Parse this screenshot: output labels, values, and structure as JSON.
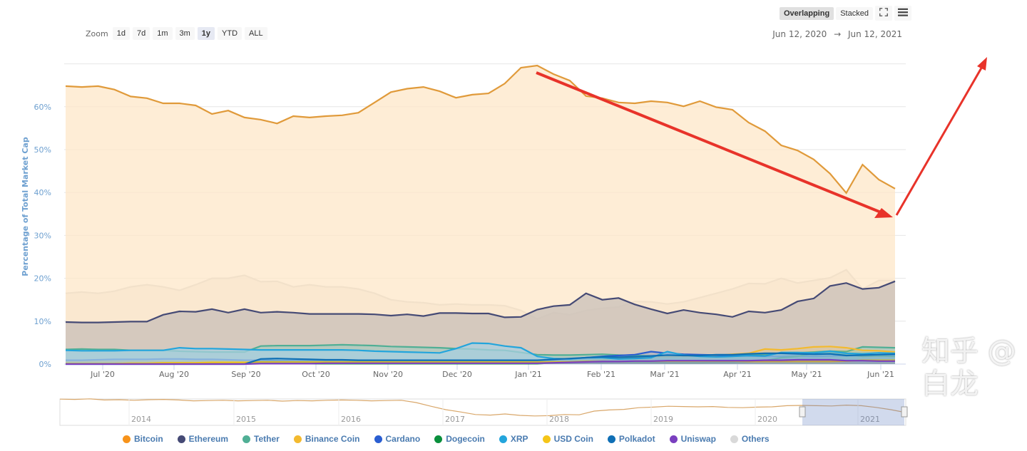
{
  "toolbar": {
    "zoom_label": "Zoom",
    "zoom_buttons": [
      "1d",
      "7d",
      "1m",
      "3m",
      "1y",
      "YTD",
      "ALL"
    ],
    "selected_zoom": "1y",
    "mode_buttons": [
      "Overlapping",
      "Stacked"
    ],
    "selected_mode": "Overlapping",
    "fullscreen_icon": "fullscreen-icon",
    "menu_icon": "hamburger-menu-icon",
    "range_from": "Jun 12, 2020",
    "range_arrow": "→",
    "range_to": "Jun 12, 2021"
  },
  "watermark": "知乎 @白龙",
  "chart_data": {
    "type": "area",
    "title": "",
    "xlabel": "",
    "ylabel": "Percentage of Total Market Cap",
    "ylim": [
      0,
      70
    ],
    "yticks": [
      "0%",
      "10%",
      "20%",
      "30%",
      "40%",
      "50%",
      "60%"
    ],
    "x_start": "2020-06-12",
    "x_end": "2021-06-12",
    "x_step": "weekly",
    "xticks": [
      "Jul '20",
      "Aug '20",
      "Sep '20",
      "Oct '20",
      "Nov '20",
      "Dec '20",
      "Jan '21",
      "Feb '21",
      "Mar '21",
      "Apr '21",
      "May '21",
      "Jun '21"
    ],
    "grid": true,
    "legend_position": "bottom",
    "series": [
      {
        "name": "Others",
        "color": "#d9d9d9",
        "values": [
          16.5,
          16.8,
          16.5,
          17,
          18,
          18.5,
          18,
          17.2,
          18.5,
          20,
          20,
          20.7,
          19.2,
          19.3,
          18,
          18.5,
          18,
          18,
          17.5,
          16.5,
          15,
          14.5,
          14.3,
          13.8,
          14,
          13.8,
          13.8,
          13.6,
          12.5,
          10.5,
          12,
          11.5,
          12.5,
          13,
          13.3,
          14.6,
          14.5,
          14,
          14.5,
          15.5,
          16.5,
          17.5,
          18.8,
          18.7,
          20,
          18.9,
          19.5,
          20.1,
          22,
          17.5,
          19.5,
          19.5
        ]
      },
      {
        "name": "Bitcoin",
        "color": "#f7931a",
        "values": [
          64.8,
          64.6,
          64.8,
          64.0,
          62.4,
          62.0,
          60.8,
          60.8,
          60.3,
          58.3,
          59.1,
          57.5,
          57.0,
          56.1,
          57.8,
          57.5,
          57.8,
          58.0,
          58.6,
          61.0,
          63.4,
          64.2,
          64.6,
          63.6,
          62.1,
          62.8,
          63.1,
          65.4,
          69.1,
          69.6,
          67.6,
          66.1,
          62.5,
          62.0,
          61.0,
          60.8,
          61.3,
          61.0,
          60.1,
          61.3,
          59.9,
          59.3,
          56.3,
          54.3,
          51.0,
          49.8,
          47.7,
          44.4,
          39.9,
          46.5,
          43.0,
          40.9
        ]
      },
      {
        "name": "Ethereum",
        "color": "#454a75",
        "values": [
          9.8,
          9.7,
          9.7,
          9.8,
          9.9,
          9.9,
          11.5,
          12.3,
          12.2,
          12.8,
          12,
          12.8,
          12,
          12.2,
          12,
          11.7,
          11.7,
          11.7,
          11.7,
          11.6,
          11.3,
          11.6,
          11.2,
          11.9,
          11.9,
          11.8,
          11.8,
          10.9,
          11,
          12.7,
          13.5,
          13.8,
          16.5,
          15,
          15.4,
          13.9,
          12.8,
          11.8,
          12.6,
          12,
          11.6,
          11,
          12.3,
          12,
          12.6,
          14.6,
          15.3,
          18.2,
          18.9,
          17.5,
          17.8,
          19.3
        ]
      },
      {
        "name": "Tether",
        "color": "#50af95",
        "values": [
          3.4,
          3.5,
          3.4,
          3.4,
          3.2,
          3.2,
          3.2,
          3,
          2.9,
          2.8,
          2.8,
          2.8,
          4.2,
          4.3,
          4.3,
          4.3,
          4.4,
          4.5,
          4.4,
          4.3,
          4.1,
          4,
          3.9,
          3.8,
          3.6,
          3.5,
          3.3,
          3.2,
          2.7,
          2.2,
          2.1,
          2.1,
          2.2,
          2.3,
          2.1,
          2,
          1.9,
          1.8,
          1.9,
          1.9,
          2,
          2,
          2.1,
          2.3,
          2.5,
          2.6,
          2.8,
          3,
          2.9,
          4,
          3.9,
          3.8
        ]
      },
      {
        "name": "Binance Coin",
        "color": "#f3ba2f",
        "values": [
          0.6,
          0.6,
          0.6,
          0.6,
          0.6,
          0.6,
          0.6,
          0.6,
          0.7,
          0.7,
          0.7,
          0.8,
          0.8,
          0.8,
          0.7,
          0.7,
          0.7,
          0.7,
          0.7,
          0.7,
          0.7,
          0.7,
          0.7,
          0.7,
          0.7,
          0.6,
          0.6,
          0.6,
          0.6,
          0.6,
          0.6,
          0.7,
          0.8,
          1.0,
          1.5,
          1.6,
          1.7,
          1.7,
          1.8,
          1.9,
          2.0,
          2.3,
          2.5,
          3.5,
          3.3,
          3.6,
          4.0,
          4.1,
          3.8,
          3.2,
          3.1,
          2.8
        ]
      },
      {
        "name": "Cardano",
        "color": "#2a5ed1",
        "values": [
          0.9,
          0.9,
          1.0,
          1.1,
          1.1,
          1.1,
          1.2,
          1.2,
          1.1,
          1.1,
          1.0,
          0.9,
          0.9,
          0.8,
          0.8,
          0.8,
          0.8,
          0.8,
          0.8,
          0.8,
          0.8,
          0.8,
          0.8,
          0.8,
          0.8,
          0.8,
          0.7,
          0.7,
          0.7,
          0.8,
          1.0,
          1.2,
          1.5,
          1.8,
          2.0,
          2.2,
          2.9,
          2.5,
          2.3,
          2.2,
          2.1,
          2.0,
          1.9,
          1.8,
          1.8,
          1.9,
          1.8,
          1.9,
          2.0,
          2.0,
          2.0,
          2.0
        ]
      },
      {
        "name": "Dogecoin",
        "color": "#0a8f3c",
        "values": [
          0.1,
          0.1,
          0.1,
          0.1,
          0.1,
          0.1,
          0.1,
          0.1,
          0.1,
          0.1,
          0.1,
          0.1,
          0.1,
          0.1,
          0.1,
          0.1,
          0.1,
          0.1,
          0.1,
          0.1,
          0.1,
          0.1,
          0.1,
          0.1,
          0.1,
          0.1,
          0.1,
          0.1,
          0.1,
          0.1,
          0.3,
          0.5,
          0.6,
          0.4,
          0.5,
          0.4,
          0.4,
          0.3,
          0.3,
          0.3,
          0.4,
          0.4,
          0.5,
          0.8,
          1.5,
          1.8,
          2.5,
          2.7,
          2.3,
          1.8,
          1.9,
          1.8
        ]
      },
      {
        "name": "XRP",
        "color": "#23a5dc",
        "values": [
          3.2,
          3.1,
          3.1,
          3.1,
          3.2,
          3.2,
          3.2,
          3.8,
          3.6,
          3.6,
          3.5,
          3.4,
          3.3,
          3.3,
          3.3,
          3.3,
          3.3,
          3.3,
          3.2,
          3,
          2.9,
          2.8,
          2.7,
          2.6,
          3.6,
          4.9,
          4.8,
          4.2,
          3.8,
          1.8,
          1.3,
          1.2,
          1.5,
          1.5,
          1.2,
          1.3,
          1.5,
          2.9,
          2.1,
          1.8,
          1.7,
          1.8,
          2,
          1.9,
          2.7,
          2.7,
          2.6,
          3,
          2.5,
          2.4,
          2.6,
          2.5
        ]
      },
      {
        "name": "USD Coin",
        "color": "#f5c518",
        "values": [
          0.1,
          0.1,
          0.1,
          0.1,
          0.2,
          0.2,
          0.3,
          0.3,
          0.3,
          0.4,
          0.4,
          0.4,
          0.5,
          0.5,
          0.5,
          0.5,
          0.5,
          0.5,
          0.5,
          0.5,
          0.5,
          0.5,
          0.5,
          0.5,
          0.5,
          0.5,
          0.5,
          0.5,
          0.5,
          0.5,
          0.5,
          0.5,
          0.6,
          0.6,
          0.6,
          0.7,
          0.7,
          0.7,
          0.7,
          0.7,
          0.7,
          0.7,
          0.6,
          0.6,
          0.6,
          0.6,
          0.6,
          0.6,
          0.7,
          0.9,
          0.9,
          0.9
        ]
      },
      {
        "name": "Polkadot",
        "color": "#0f6fb5",
        "values": [
          0,
          0,
          0,
          0,
          0,
          0,
          0,
          0,
          0,
          0,
          0,
          0,
          1.2,
          1.3,
          1.2,
          1.1,
          1.0,
          1.0,
          0.9,
          0.9,
          0.9,
          0.9,
          0.9,
          0.9,
          0.9,
          0.9,
          0.9,
          0.9,
          0.9,
          0.9,
          1.1,
          1.3,
          1.5,
          1.7,
          1.6,
          1.7,
          1.9,
          2.1,
          2.0,
          2.0,
          2.2,
          2.2,
          2.4,
          2.5,
          2.5,
          2.4,
          2.3,
          2.4,
          2.0,
          2.1,
          2.2,
          2.3
        ]
      },
      {
        "name": "Uniswap",
        "color": "#7a3fbf",
        "values": [
          0,
          0,
          0,
          0,
          0,
          0,
          0,
          0,
          0,
          0,
          0,
          0,
          0.1,
          0.1,
          0.1,
          0.1,
          0.2,
          0.2,
          0.2,
          0.2,
          0.2,
          0.2,
          0.2,
          0.2,
          0.2,
          0.2,
          0.2,
          0.2,
          0.2,
          0.2,
          0.3,
          0.4,
          0.5,
          0.6,
          0.6,
          0.7,
          0.7,
          0.8,
          0.8,
          0.8,
          0.8,
          0.8,
          0.8,
          0.9,
          0.9,
          1.0,
          1.0,
          1.0,
          0.8,
          0.8,
          0.7,
          0.7
        ]
      }
    ],
    "navigator": {
      "xticks": [
        "2014",
        "2015",
        "2016",
        "2017",
        "2018",
        "2019",
        "2020",
        "2021"
      ],
      "bitcoin_values": [
        92,
        91,
        93,
        89,
        90,
        88,
        90,
        91,
        89,
        86,
        87,
        88,
        86,
        87,
        88,
        85,
        87,
        86,
        88,
        89,
        88,
        86,
        87,
        88,
        80,
        67,
        55,
        47,
        38,
        36,
        40,
        35,
        33,
        34,
        38,
        37,
        50,
        54,
        56,
        62,
        64,
        67,
        66,
        65,
        66,
        63,
        62,
        64,
        65,
        69,
        70,
        69,
        68,
        71,
        69,
        63,
        55,
        45
      ]
    },
    "annotations": [
      "red-arrow-down",
      "red-arrow-up"
    ]
  }
}
